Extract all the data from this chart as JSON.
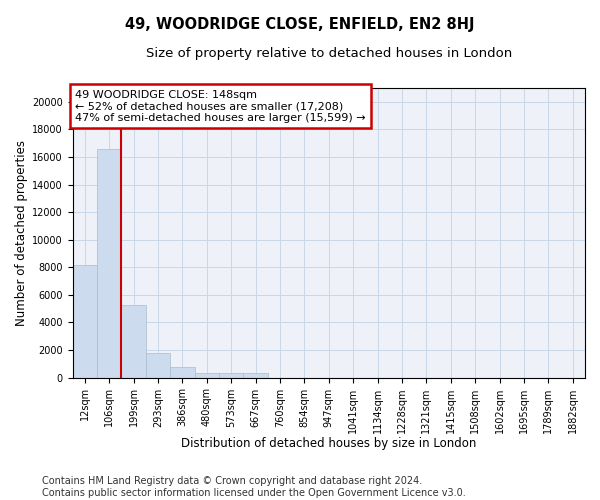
{
  "title": "49, WOODRIDGE CLOSE, ENFIELD, EN2 8HJ",
  "subtitle": "Size of property relative to detached houses in London",
  "xlabel": "Distribution of detached houses by size in London",
  "ylabel": "Number of detached properties",
  "bar_color": "#ccdcee",
  "bar_edgecolor": "#aabcce",
  "annotation_box_color": "#cc0000",
  "vline_color": "#cc0000",
  "grid_color": "#c8d8e8",
  "background_color": "#eef2f8",
  "annotation_lines": [
    "49 WOODRIDGE CLOSE: 148sqm",
    "← 52% of detached houses are smaller (17,208)",
    "47% of semi-detached houses are larger (15,599) →"
  ],
  "x_labels": [
    "12sqm",
    "106sqm",
    "199sqm",
    "293sqm",
    "386sqm",
    "480sqm",
    "573sqm",
    "667sqm",
    "760sqm",
    "854sqm",
    "947sqm",
    "1041sqm",
    "1134sqm",
    "1228sqm",
    "1321sqm",
    "1415sqm",
    "1508sqm",
    "1602sqm",
    "1695sqm",
    "1789sqm",
    "1882sqm"
  ],
  "bar_heights": [
    8200,
    16600,
    5300,
    1800,
    800,
    350,
    300,
    300,
    0,
    0,
    0,
    0,
    0,
    0,
    0,
    0,
    0,
    0,
    0,
    0,
    0
  ],
  "vline_x_index": 1.5,
  "ylim": [
    0,
    21000
  ],
  "yticks": [
    0,
    2000,
    4000,
    6000,
    8000,
    10000,
    12000,
    14000,
    16000,
    18000,
    20000
  ],
  "footer_lines": [
    "Contains HM Land Registry data © Crown copyright and database right 2024.",
    "Contains public sector information licensed under the Open Government Licence v3.0."
  ],
  "title_fontsize": 10.5,
  "subtitle_fontsize": 9.5,
  "axis_label_fontsize": 8.5,
  "tick_fontsize": 7,
  "annotation_fontsize": 8,
  "footer_fontsize": 7
}
